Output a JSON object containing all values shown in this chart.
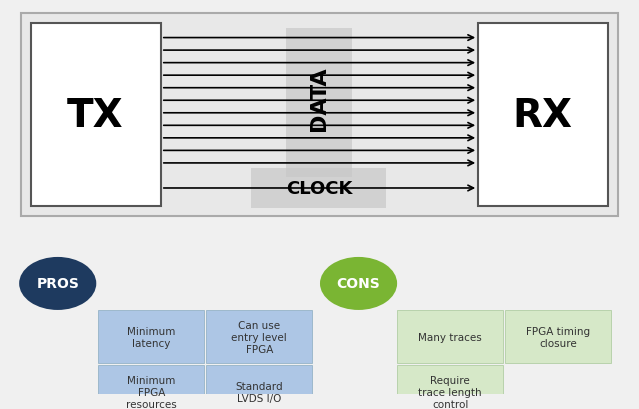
{
  "bg_color": "#f0f0f0",
  "main_box_color": "#e8e8e8",
  "tx_rx_box_color": "#ffffff",
  "data_highlight_color": "#cccccc",
  "clock_highlight_color": "#cccccc",
  "arrow_color": "#000000",
  "tx_label": "TX",
  "rx_label": "RX",
  "data_label": "DATA",
  "clock_label": "CLOCK",
  "pros_circle_color": "#1e3a5f",
  "cons_circle_color": "#7ab533",
  "pros_label": "PROS",
  "cons_label": "CONS",
  "pros_box_color": "#adc6e5",
  "cons_box_color": "#d6e8c8",
  "pros_items": [
    "Minimum\nlatency",
    "Can use\nentry level\nFPGA",
    "Minimum\nFPGA\nresources",
    "Standard\nLVDS I/O"
  ],
  "cons_items": [
    "Many traces",
    "FPGA timing\nclosure",
    "Require\ntrace length\ncontrol",
    ""
  ],
  "num_data_lines": 11,
  "num_clock_lines": 1
}
